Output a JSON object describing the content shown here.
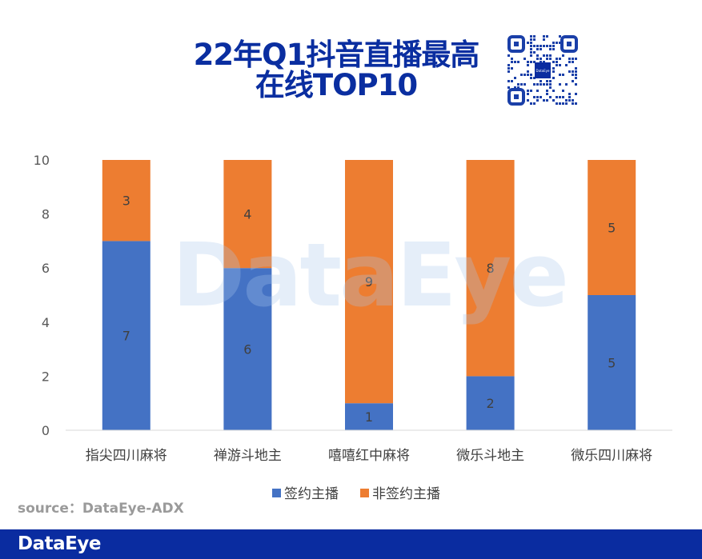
{
  "title": "22年Q1抖音直播最高在线TOP10",
  "title_line1": "22年Q1抖音直播最高",
  "title_line2": "在线TOP10",
  "watermark": "DataEye",
  "qr_logo": "DataEye",
  "source": "source：DataEye-ADX",
  "footer_logo": "DataEye",
  "colors": {
    "signed": "#4472c4",
    "unsigned": "#ed7d31",
    "brand": "#0a2ca0"
  },
  "chart_data": {
    "type": "bar",
    "stacked": true,
    "categories": [
      "指尖四川麻将",
      "禅游斗地主",
      "嘻嘻红中麻将",
      "微乐斗地主",
      "微乐四川麻将"
    ],
    "series": [
      {
        "name": "签约主播",
        "values": [
          7,
          6,
          1,
          2,
          5
        ],
        "color": "#4472c4"
      },
      {
        "name": "非签约主播",
        "values": [
          3,
          4,
          9,
          8,
          5
        ],
        "color": "#ed7d31"
      }
    ],
    "ylim": [
      0,
      10
    ],
    "yticks": [
      0,
      2,
      4,
      6,
      8,
      10
    ],
    "grid": false,
    "legend": "bottom"
  }
}
